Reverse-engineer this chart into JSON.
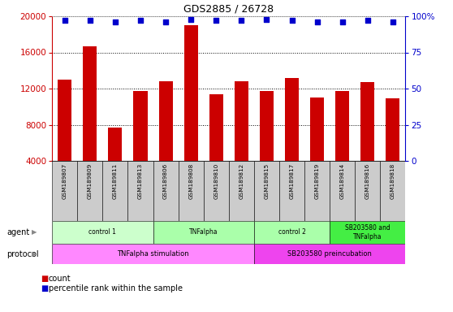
{
  "title": "GDS2885 / 26728",
  "samples": [
    "GSM189807",
    "GSM189809",
    "GSM189811",
    "GSM189813",
    "GSM189806",
    "GSM189808",
    "GSM189810",
    "GSM189812",
    "GSM189815",
    "GSM189817",
    "GSM189819",
    "GSM189814",
    "GSM189816",
    "GSM189818"
  ],
  "bar_values": [
    13000,
    16700,
    7700,
    11700,
    12800,
    19000,
    11400,
    12800,
    11700,
    13200,
    11000,
    11700,
    12700,
    10900
  ],
  "percentile_values": [
    97,
    97,
    96,
    97,
    96,
    98,
    97,
    97,
    98,
    97,
    96,
    96,
    97,
    96
  ],
  "bar_color": "#cc0000",
  "dot_color": "#0000cc",
  "ylim_left": [
    4000,
    20000
  ],
  "ylim_right": [
    0,
    100
  ],
  "yticks_left": [
    4000,
    8000,
    12000,
    16000,
    20000
  ],
  "yticks_right": [
    0,
    25,
    50,
    75,
    100
  ],
  "agent_groups": [
    {
      "label": "control 1",
      "start": 0,
      "end": 4,
      "color": "#ccffcc"
    },
    {
      "label": "TNFalpha",
      "start": 4,
      "end": 8,
      "color": "#aaffaa"
    },
    {
      "label": "control 2",
      "start": 8,
      "end": 11,
      "color": "#aaffaa"
    },
    {
      "label": "SB203580 and\nTNFalpha",
      "start": 11,
      "end": 14,
      "color": "#44ee44"
    }
  ],
  "protocol_groups": [
    {
      "label": "TNFalpha stimulation",
      "start": 0,
      "end": 8,
      "color": "#ff88ff"
    },
    {
      "label": "SB203580 preincubation",
      "start": 8,
      "end": 14,
      "color": "#ee44ee"
    }
  ],
  "agent_label": "agent",
  "protocol_label": "protocol",
  "legend_count_label": "count",
  "legend_pct_label": "percentile rank within the sample",
  "axis_label_color_left": "#cc0000",
  "axis_label_color_right": "#0000cc",
  "background_color": "#ffffff",
  "xticklabel_bg": "#cccccc"
}
